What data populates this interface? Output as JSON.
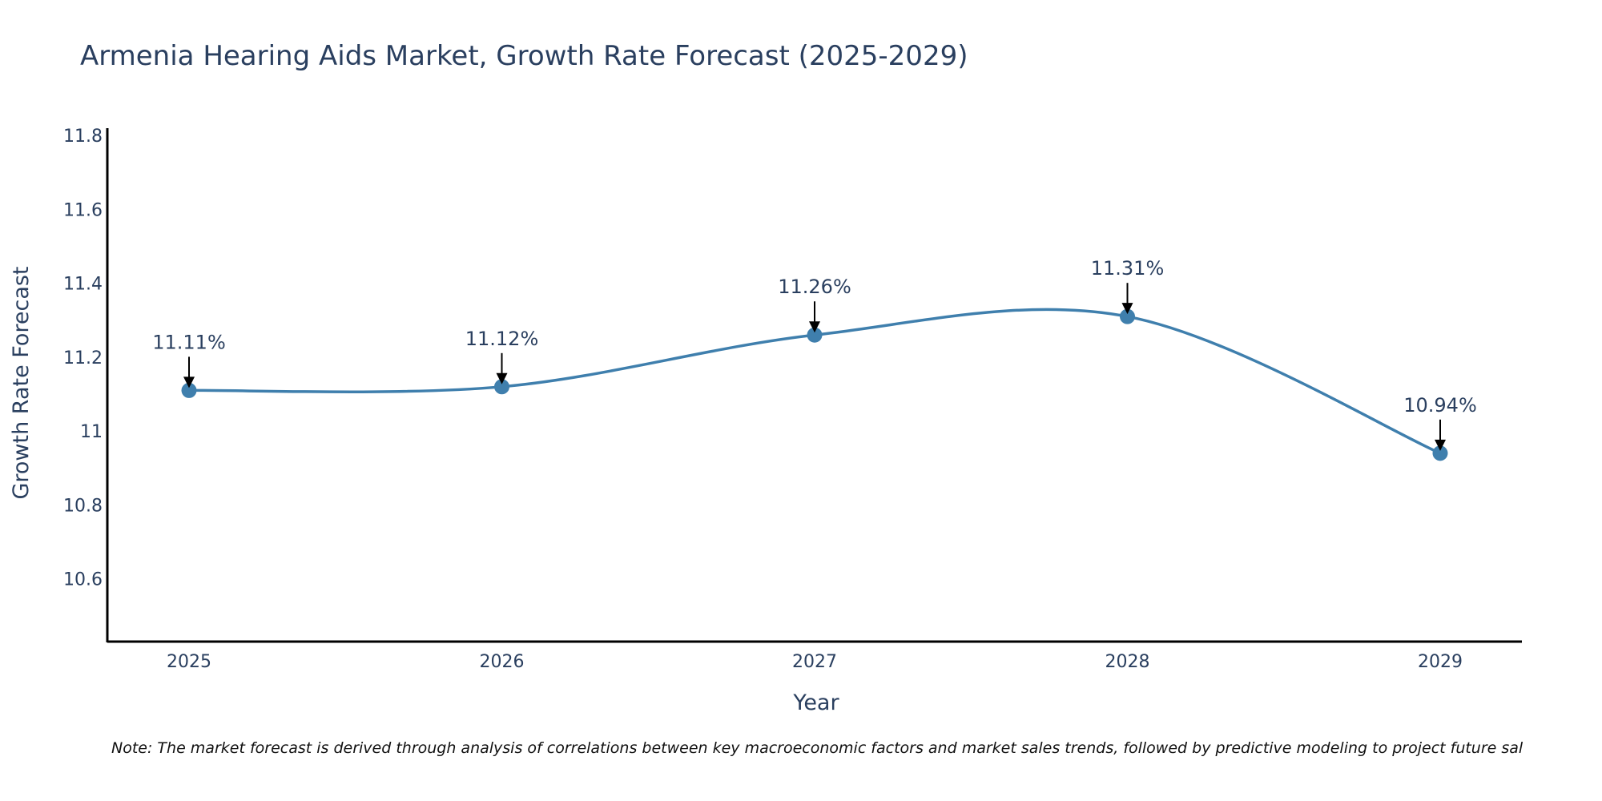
{
  "chart_data": {
    "type": "line",
    "title": "Armenia Hearing Aids Market, Growth Rate Forecast (2025-2029)",
    "xlabel": "Year",
    "ylabel": "Growth Rate Forecast",
    "categories": [
      "2025",
      "2026",
      "2027",
      "2028",
      "2029"
    ],
    "series": [
      {
        "name": "Growth Rate Forecast",
        "values": [
          11.11,
          11.12,
          11.26,
          11.31,
          10.94
        ],
        "labels": [
          "11.11%",
          "11.12%",
          "11.26%",
          "11.31%",
          "10.94%"
        ]
      }
    ],
    "ylim": [
      10.43,
      11.82
    ],
    "yticks": [
      10.6,
      10.8,
      11.0,
      11.2,
      11.4,
      11.6,
      11.8
    ],
    "ytick_labels": [
      "10.6",
      "10.8",
      "11",
      "11.2",
      "11.4",
      "11.6",
      "11.8"
    ],
    "grid": false,
    "line_shape": "spline",
    "line_color": "#3f7fad",
    "marker_color": "#3f7fad",
    "note": "Note: The market forecast is derived through analysis of correlations between key macroeconomic factors and market sales trends, followed by predictive modeling to project future sal"
  }
}
